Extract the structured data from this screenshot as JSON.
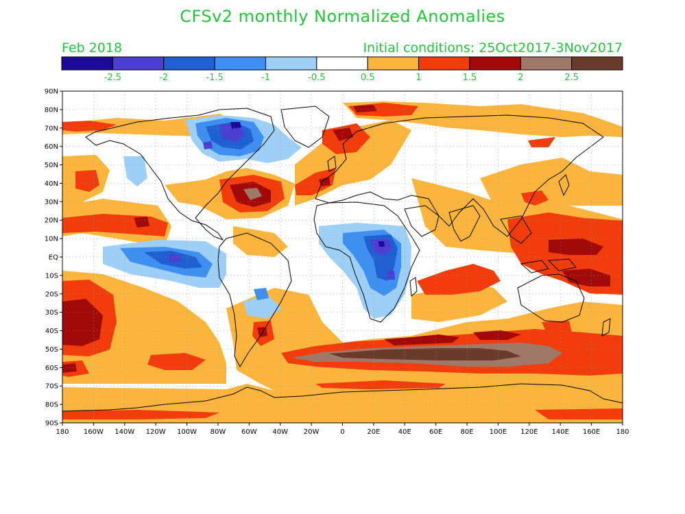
{
  "title": "CFSv2 monthly Normalized Anomalies",
  "valid_month": "Feb 2018",
  "initial_conditions": "Initial conditions: 25Oct2017-3Nov2017",
  "colorbar": {
    "bins": [
      {
        "color": "#1e0a9a"
      },
      {
        "color": "#4a3fd0"
      },
      {
        "color": "#1e5fd2"
      },
      {
        "color": "#3f8ff0"
      },
      {
        "color": "#9ecff6"
      },
      {
        "color": "#ffffff"
      },
      {
        "color": "#fbb53c"
      },
      {
        "color": "#f23c0c"
      },
      {
        "color": "#a20a0a"
      },
      {
        "color": "#a07868"
      },
      {
        "color": "#6a3a2a"
      }
    ],
    "tick_labels": [
      "-2.5",
      "-2",
      "-1.5",
      "-1",
      "-0.5",
      "0.5",
      "1",
      "1.5",
      "2",
      "2.5"
    ]
  },
  "lat_labels": [
    "90N",
    "80N",
    "70N",
    "60N",
    "50N",
    "40N",
    "30N",
    "20N",
    "10N",
    "EQ",
    "10S",
    "20S",
    "30S",
    "40S",
    "50S",
    "60S",
    "70S",
    "80S",
    "90S"
  ],
  "lon_labels": [
    "180",
    "160W",
    "140W",
    "120W",
    "100W",
    "80W",
    "60W",
    "40W",
    "20W",
    "0",
    "20E",
    "40E",
    "60E",
    "80E",
    "100E",
    "120E",
    "140E",
    "160E",
    "180"
  ]
}
